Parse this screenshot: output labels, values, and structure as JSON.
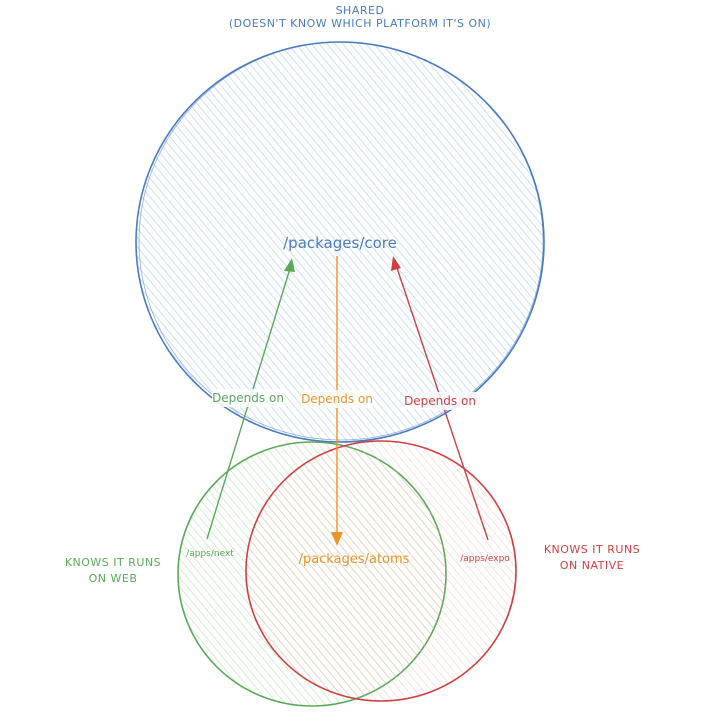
{
  "colors": {
    "blue": "#4a7cc0",
    "blue_fill": "#cfe2f7",
    "green": "#5aa95a",
    "green_fill": "#d5ecd0",
    "red": "#d04040",
    "red_fill": "#f8d6d2",
    "orange": "#e8952c"
  },
  "shared_label": {
    "line1": "SHARED",
    "line2": "(DOESN'T KNOW WHICH PLATFORM IT'S ON)"
  },
  "core_label": "/packages/core",
  "atoms_label": "/packages/atoms",
  "next_label": "/apps/next",
  "expo_label": "/apps/expo",
  "web_label": {
    "line1": "KNOWS IT RUNS",
    "line2": "ON WEB"
  },
  "native_label": {
    "line1": "KNOWS IT RUNS",
    "line2": "ON NATIVE"
  },
  "edges": {
    "next_to_core": "Depends on",
    "atoms_to_core": "Depends on",
    "expo_to_core": "Depends on"
  }
}
